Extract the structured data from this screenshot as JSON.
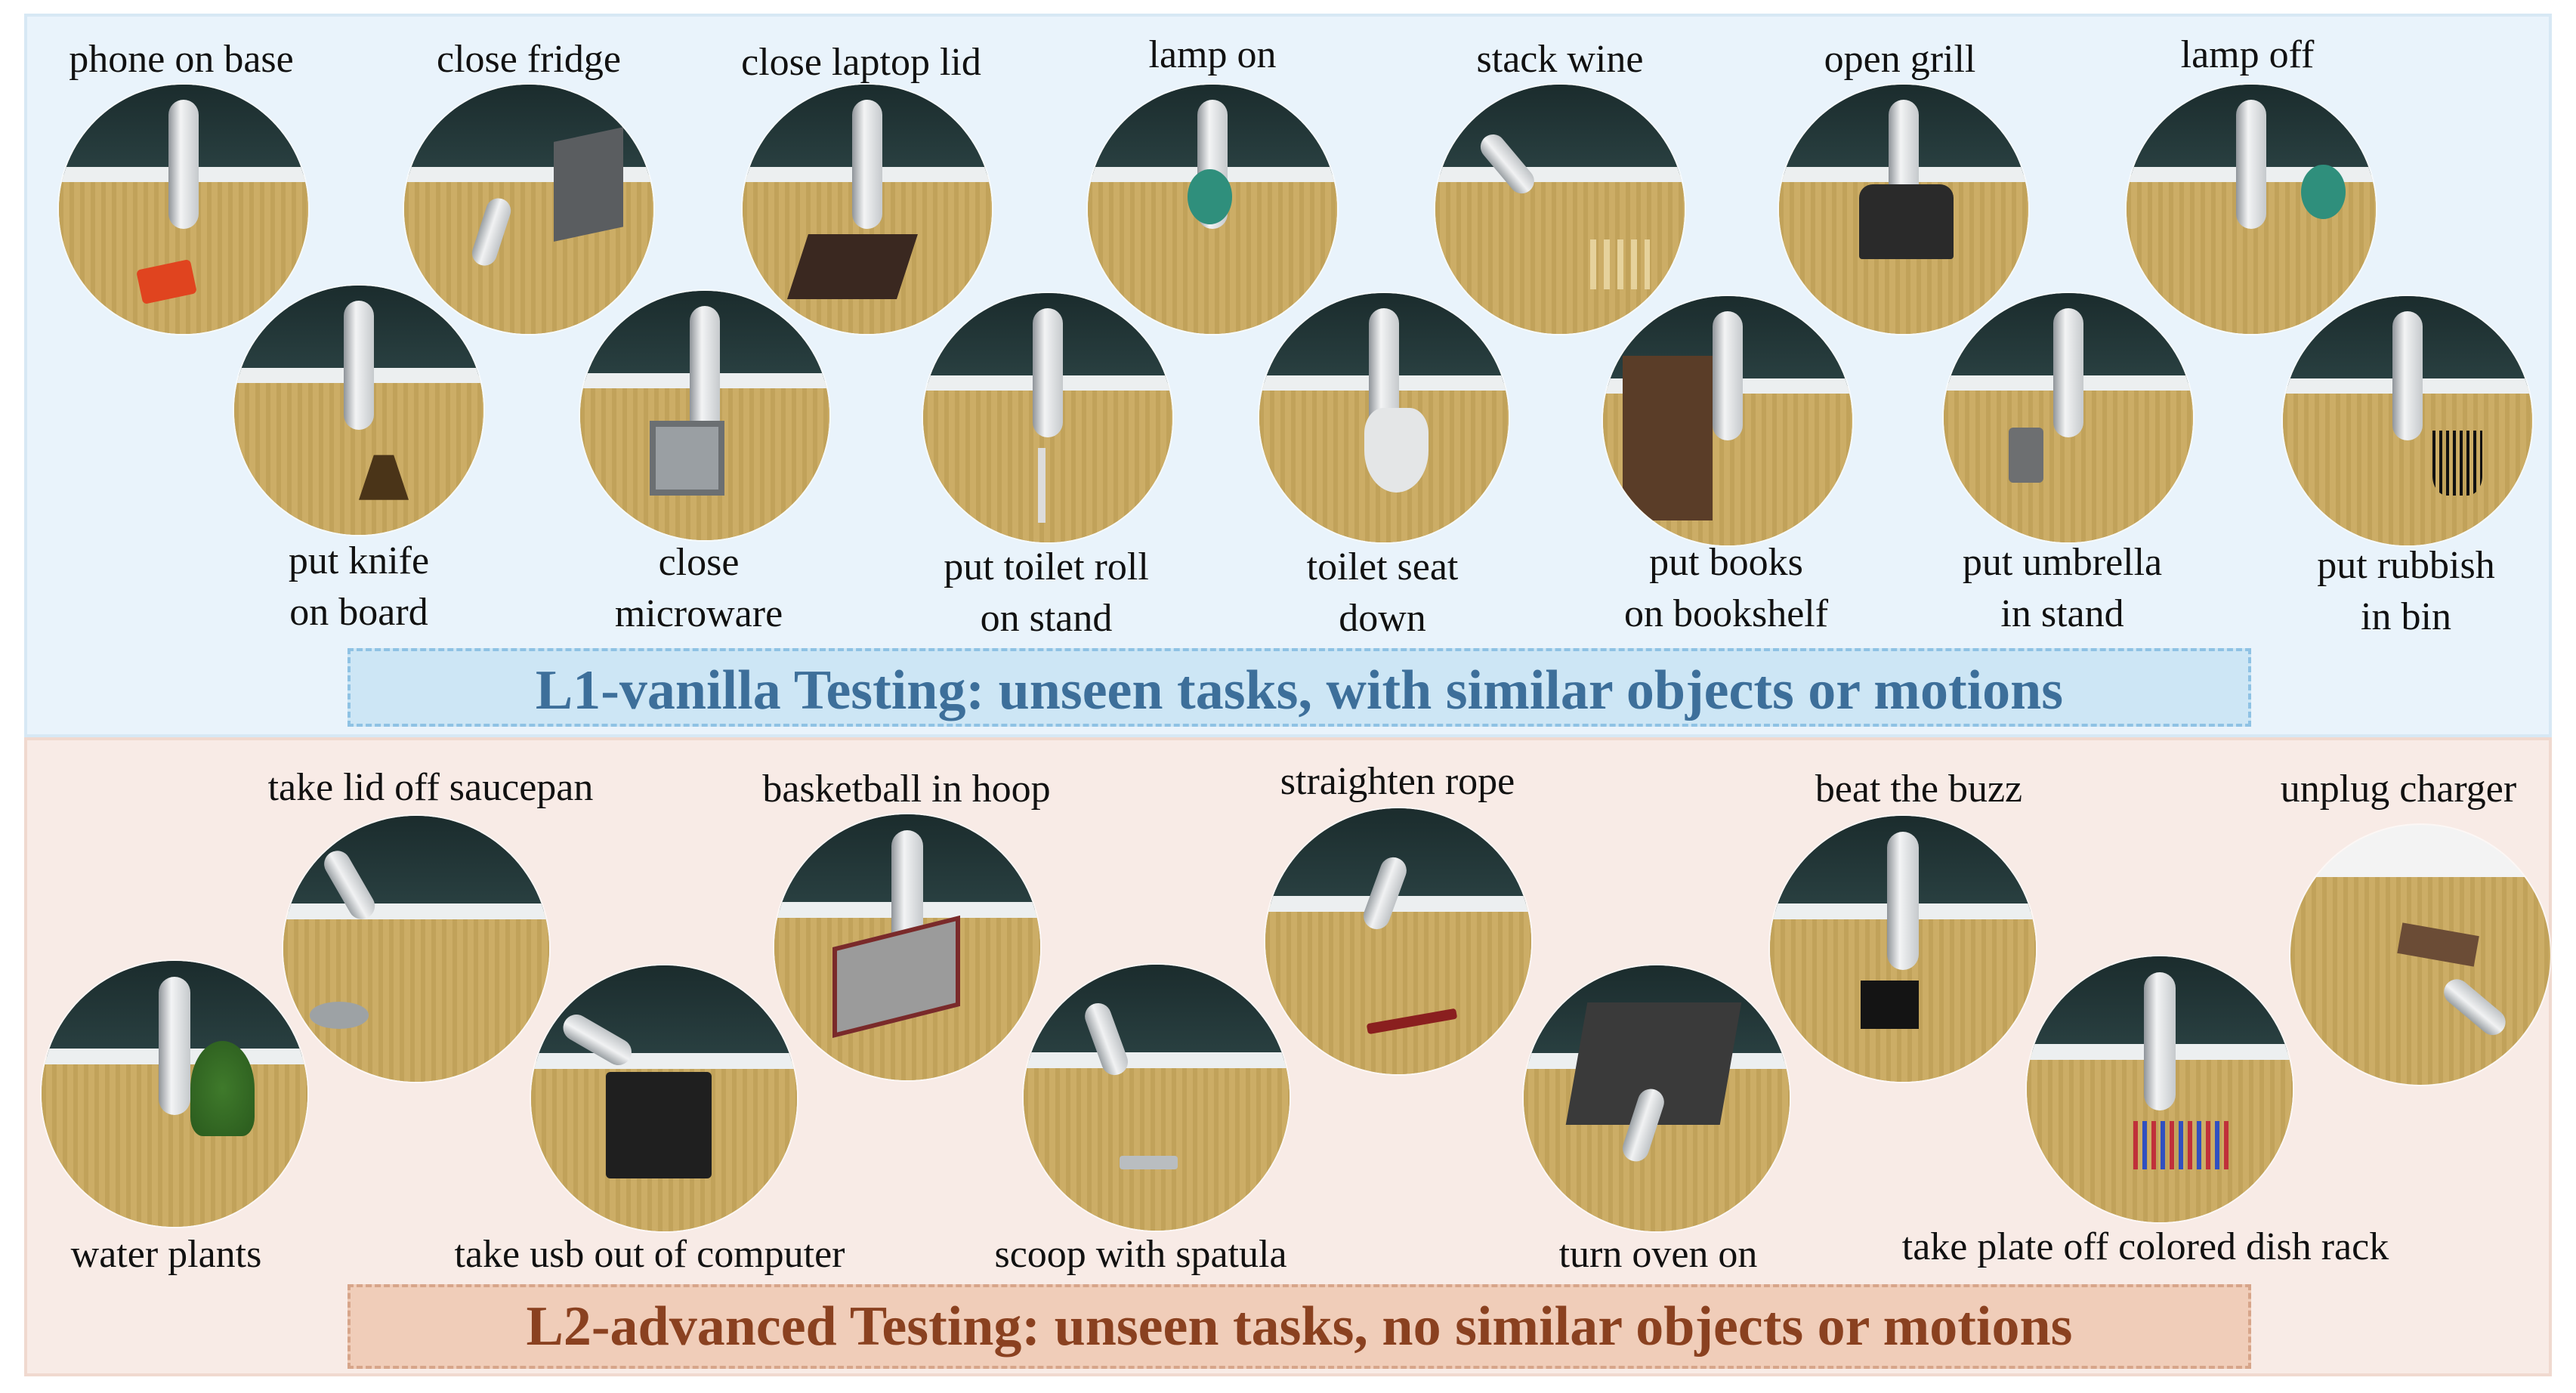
{
  "l1": {
    "banner": "L1-vanilla Testing: unseen tasks, with similar objects or motions",
    "tasks": [
      {
        "label": "phone on base"
      },
      {
        "label": "close fridge"
      },
      {
        "label": "close laptop lid"
      },
      {
        "label": "lamp on"
      },
      {
        "label": "stack wine"
      },
      {
        "label": "open grill"
      },
      {
        "label": "lamp off"
      },
      {
        "label": "put knife",
        "label2": "on board"
      },
      {
        "label": "close",
        "label2": "microware"
      },
      {
        "label": "put toilet roll",
        "label2": "on stand"
      },
      {
        "label": "toilet seat",
        "label2": "down"
      },
      {
        "label": "put books",
        "label2": "on bookshelf"
      },
      {
        "label": "put umbrella",
        "label2": "in stand"
      },
      {
        "label": "put rubbish",
        "label2": "in bin"
      }
    ]
  },
  "l2": {
    "banner": "L2-advanced Testing: unseen tasks, no similar objects or motions",
    "tasks": [
      {
        "label": "take lid off  saucepan"
      },
      {
        "label": "basketball in hoop"
      },
      {
        "label": "straighten rope"
      },
      {
        "label": "beat the buzz"
      },
      {
        "label": "unplug charger"
      },
      {
        "label": "water plants"
      },
      {
        "label": "take usb out of computer"
      },
      {
        "label": "scoop with spatula"
      },
      {
        "label": "turn oven on"
      },
      {
        "label": "take plate off colored dish rack"
      }
    ]
  },
  "colors": {
    "l1_background": "#e9f3fb",
    "l1_banner_text": "#3d6f9a",
    "l2_background": "#f8ebe6",
    "l2_banner_text": "#8a4120"
  }
}
